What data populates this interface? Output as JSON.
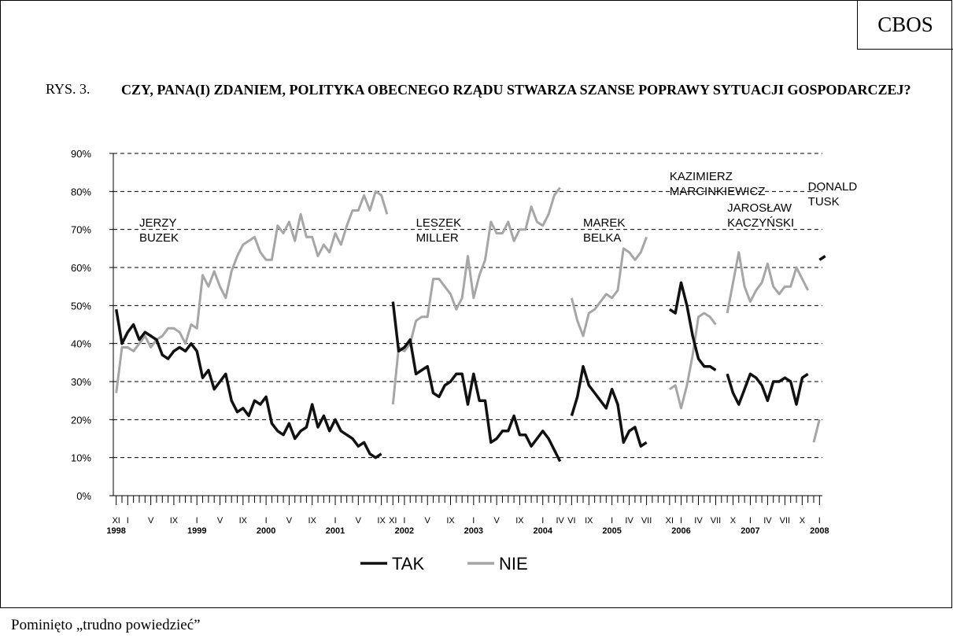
{
  "header": {
    "brand": "CBOS",
    "figure_label": "RYS. 3.",
    "title": "CZY, PANA(I) ZDANIEM, POLITYKA OBECNEGO RZĄDU STWARZA SZANSE POPRAWY SYTUACJI GOSPODARCZEJ?"
  },
  "footnote": "Pominięto „trudno powiedzieć”",
  "chart_data": {
    "type": "line",
    "title": "",
    "xlabel": "",
    "ylabel": "",
    "ylim": [
      0,
      90
    ],
    "y_ticks": [
      "0%",
      "10%",
      "20%",
      "30%",
      "40%",
      "50%",
      "60%",
      "70%",
      "80%",
      "90%"
    ],
    "grid": "horizontal dashed",
    "legend_position": "bottom-center",
    "x_month_labels": [
      {
        "i": 0,
        "label": "XI"
      },
      {
        "i": 2,
        "label": "I"
      },
      {
        "i": 6,
        "label": "V"
      },
      {
        "i": 10,
        "label": "IX"
      },
      {
        "i": 14,
        "label": "I"
      },
      {
        "i": 18,
        "label": "V"
      },
      {
        "i": 22,
        "label": "IX"
      },
      {
        "i": 26,
        "label": "I"
      },
      {
        "i": 30,
        "label": "V"
      },
      {
        "i": 34,
        "label": "IX"
      },
      {
        "i": 38,
        "label": "I"
      },
      {
        "i": 42,
        "label": "V"
      },
      {
        "i": 46,
        "label": "IX"
      },
      {
        "i": 48,
        "label": "XI"
      },
      {
        "i": 50,
        "label": "I"
      },
      {
        "i": 54,
        "label": "V"
      },
      {
        "i": 58,
        "label": "IX"
      },
      {
        "i": 62,
        "label": "I"
      },
      {
        "i": 66,
        "label": "V"
      },
      {
        "i": 70,
        "label": "IX"
      },
      {
        "i": 74,
        "label": "I"
      },
      {
        "i": 77,
        "label": "IV"
      },
      {
        "i": 79,
        "label": "VI"
      },
      {
        "i": 82,
        "label": "IX"
      },
      {
        "i": 86,
        "label": "I"
      },
      {
        "i": 89,
        "label": "IV"
      },
      {
        "i": 92,
        "label": "VII"
      },
      {
        "i": 96,
        "label": "XI"
      },
      {
        "i": 98,
        "label": "I"
      },
      {
        "i": 101,
        "label": "IV"
      },
      {
        "i": 104,
        "label": "VII"
      },
      {
        "i": 107,
        "label": "X"
      },
      {
        "i": 110,
        "label": "I"
      },
      {
        "i": 113,
        "label": "IV"
      },
      {
        "i": 116,
        "label": "VII"
      },
      {
        "i": 119,
        "label": "X"
      },
      {
        "i": 122,
        "label": "I"
      }
    ],
    "x_year_labels": [
      {
        "i": 0,
        "label": "1998"
      },
      {
        "i": 14,
        "label": "1999"
      },
      {
        "i": 26,
        "label": "2000"
      },
      {
        "i": 38,
        "label": "2001"
      },
      {
        "i": 50,
        "label": "2002"
      },
      {
        "i": 62,
        "label": "2003"
      },
      {
        "i": 74,
        "label": "2004"
      },
      {
        "i": 86,
        "label": "2005"
      },
      {
        "i": 98,
        "label": "2006"
      },
      {
        "i": 110,
        "label": "2007"
      },
      {
        "i": 122,
        "label": "2008"
      }
    ],
    "series": [
      {
        "name": "TAK",
        "color": "#111111",
        "segments": [
          {
            "start": 0,
            "values": [
              49,
              40,
              43,
              45,
              41,
              43,
              42,
              41,
              37,
              36,
              38,
              39,
              38,
              40,
              38,
              31,
              33,
              28,
              30,
              32,
              25,
              22,
              23,
              21,
              25,
              24,
              26,
              19,
              17,
              16,
              19,
              15,
              17,
              18,
              24,
              18,
              21,
              17,
              20,
              17,
              16,
              15,
              13,
              14,
              11,
              10,
              11
            ]
          },
          {
            "start": 48,
            "values": [
              51,
              38,
              39,
              41,
              32,
              33,
              34,
              27,
              26,
              29,
              30,
              32,
              32,
              24,
              32,
              25,
              25,
              14,
              15,
              17,
              17,
              21,
              16,
              16,
              13,
              15,
              17,
              15,
              12,
              9
            ]
          },
          {
            "start": 79,
            "values": [
              21,
              26,
              34,
              29,
              27,
              25,
              23,
              28,
              24,
              14,
              17,
              18,
              13,
              14
            ]
          },
          {
            "start": 96,
            "values": [
              49,
              48,
              56,
              50,
              42,
              36,
              34,
              34,
              33
            ]
          },
          {
            "start": 106,
            "values": [
              32,
              27,
              24,
              28,
              32,
              31,
              29,
              25,
              30,
              30,
              31,
              30,
              24,
              31,
              32
            ]
          },
          {
            "start": 122,
            "values": [
              62,
              63
            ]
          }
        ]
      },
      {
        "name": "NIE",
        "color": "#a6a6a6",
        "segments": [
          {
            "start": 0,
            "values": [
              27,
              39,
              39,
              38,
              40,
              42,
              39,
              41,
              42,
              44,
              44,
              43,
              40,
              45,
              44,
              58,
              55,
              59,
              55,
              52,
              59,
              63,
              66,
              67,
              68,
              64,
              62,
              62,
              71,
              69,
              72,
              67,
              74,
              68,
              68,
              63,
              66,
              64,
              69,
              66,
              71,
              75,
              75,
              79,
              75,
              80,
              79,
              74
            ]
          },
          {
            "start": 48,
            "values": [
              24,
              39,
              38,
              40,
              46,
              47,
              47,
              57,
              57,
              55,
              53,
              49,
              52,
              63,
              52,
              58,
              62,
              72,
              69,
              69,
              72,
              67,
              70,
              70,
              76,
              72,
              71,
              74,
              79,
              81
            ]
          },
          {
            "start": 79,
            "values": [
              52,
              46,
              42,
              48,
              49,
              51,
              53,
              52,
              54,
              65,
              64,
              62,
              64,
              68
            ]
          },
          {
            "start": 96,
            "values": [
              28,
              29,
              23,
              29,
              37,
              47,
              48,
              47,
              45
            ]
          },
          {
            "start": 106,
            "values": [
              48,
              56,
              64,
              55,
              51,
              54,
              56,
              61,
              55,
              53,
              55,
              55,
              60,
              57,
              54
            ]
          },
          {
            "start": 121,
            "values": [
              14,
              20
            ]
          }
        ]
      }
    ],
    "annotations": [
      {
        "text": [
          "JERZY",
          "BUZEK"
        ],
        "i": 4
      },
      {
        "text": [
          "LESZEK",
          "MILLER"
        ],
        "i": 52
      },
      {
        "text": [
          "MAREK",
          "BELKA"
        ],
        "i": 81
      },
      {
        "text": [
          "KAZIMIERZ",
          "MARCINKIEWICZ"
        ],
        "i": 96
      },
      {
        "text": [
          "JAROSŁAW",
          "KACZYŃSKI"
        ],
        "i": 106
      },
      {
        "text": [
          "DONALD",
          "TUSK"
        ],
        "i": 120
      }
    ]
  }
}
